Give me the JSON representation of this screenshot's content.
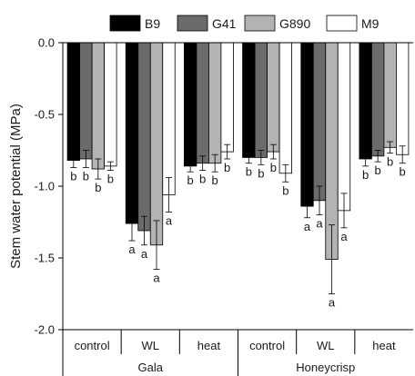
{
  "chart_data": {
    "type": "bar",
    "ylabel": "Stem water potential (MPa)",
    "ylim": [
      -2.0,
      0.0
    ],
    "yticks": [
      0.0,
      -0.5,
      -1.0,
      -1.5,
      -2.0
    ],
    "ytick_labels": [
      "0.0",
      "-0.5",
      "-1.0",
      "-1.5",
      "-2.0"
    ],
    "categories": [
      "control",
      "WL",
      "heat",
      "control",
      "WL",
      "heat"
    ],
    "groups": [
      {
        "label": "Gala",
        "categories": [
          0,
          1,
          2
        ]
      },
      {
        "label": "Honeycrisp",
        "categories": [
          3,
          4,
          5
        ]
      }
    ],
    "legend_position": "top",
    "series": [
      {
        "name": "B9",
        "color": "#000000",
        "values": [
          -0.82,
          -1.26,
          -0.86,
          -0.8,
          -1.14,
          -0.81
        ],
        "errors": [
          0.05,
          0.12,
          0.04,
          0.04,
          0.08,
          0.05
        ],
        "labels": [
          "b",
          "a",
          "b",
          "b",
          "a",
          "b"
        ]
      },
      {
        "name": "G41",
        "color": "#6b6b6b",
        "values": [
          -0.81,
          -1.31,
          -0.84,
          -0.8,
          -1.1,
          -0.79
        ],
        "errors": [
          0.06,
          0.1,
          0.05,
          0.05,
          0.1,
          0.04
        ],
        "labels": [
          "b",
          "a",
          "b",
          "b",
          "a",
          "b"
        ]
      },
      {
        "name": "G890",
        "color": "#b3b3b3",
        "values": [
          -0.88,
          -1.41,
          -0.84,
          -0.76,
          -1.51,
          -0.73
        ],
        "errors": [
          0.07,
          0.17,
          0.06,
          0.05,
          0.24,
          0.04
        ],
        "labels": [
          "b",
          "a",
          "b",
          "b",
          "a",
          "b"
        ]
      },
      {
        "name": "M9",
        "color": "#ffffff",
        "values": [
          -0.86,
          -1.06,
          -0.76,
          -0.91,
          -1.17,
          -0.78
        ],
        "errors": [
          0.03,
          0.12,
          0.05,
          0.06,
          0.12,
          0.06
        ],
        "labels": [
          "b",
          "a",
          "b",
          "b",
          "a",
          "b"
        ]
      }
    ]
  }
}
